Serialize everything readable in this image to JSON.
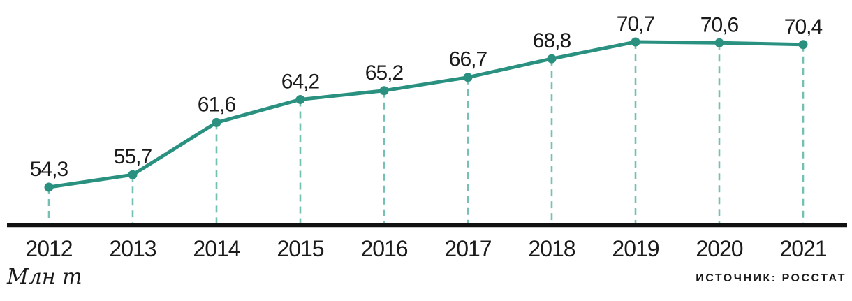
{
  "chart_data": {
    "type": "line",
    "categories": [
      "2012",
      "2013",
      "2014",
      "2015",
      "2016",
      "2017",
      "2018",
      "2019",
      "2020",
      "2021"
    ],
    "values": [
      54.3,
      55.7,
      61.6,
      64.2,
      65.2,
      66.7,
      68.8,
      70.7,
      70.6,
      70.4
    ],
    "point_labels": [
      "54,3",
      "55,7",
      "61,6",
      "64,2",
      "65,2",
      "66,7",
      "68,8",
      "70,7",
      "70,6",
      "70,4"
    ],
    "title": "",
    "xlabel": "",
    "ylabel": "Млн т",
    "source": "ИСТОЧНИК: РОССТАТ",
    "ylim": [
      54.3,
      70.7
    ],
    "legend_position": "none",
    "grid": "vertical-dashed-drop-lines",
    "colors": {
      "line": "#2A9180",
      "point": "#2A9180",
      "drop_line": "#74C0B3",
      "axis": "#111111",
      "text": "#1A1A1A"
    }
  }
}
